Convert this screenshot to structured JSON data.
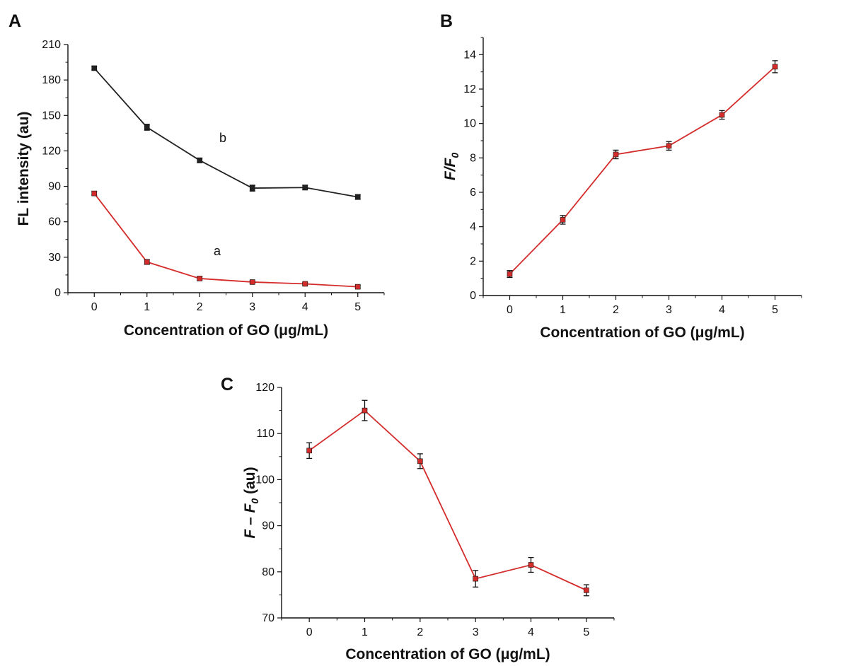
{
  "chart_data": [
    {
      "panel": "A",
      "type": "line",
      "x": [
        0,
        1,
        2,
        3,
        4,
        5
      ],
      "xlim": [
        -0.5,
        5.5
      ],
      "ylim": [
        0,
        210
      ],
      "xticks": [
        "0",
        "1",
        "2",
        "3",
        "4",
        "5"
      ],
      "yticks": [
        "0",
        "30",
        "60",
        "90",
        "120",
        "150",
        "180",
        "210"
      ],
      "xlabel": "Concentration of GO (μg/mL)",
      "ylabel": "FL intensity (au)",
      "grid": false,
      "series": [
        {
          "name": "b",
          "color": "#222222",
          "values": [
            190,
            140,
            112,
            88.5,
            89,
            81
          ],
          "errors": [
            1.5,
            2.5,
            2,
            2.5,
            2,
            2
          ]
        },
        {
          "name": "a",
          "color": "#d42b2b",
          "values": [
            84,
            26,
            12,
            9,
            7.5,
            5
          ],
          "errors": [
            1.5,
            2,
            1.5,
            1,
            1,
            1
          ]
        }
      ]
    },
    {
      "panel": "B",
      "type": "line",
      "x": [
        0,
        1,
        2,
        3,
        4,
        5
      ],
      "xlim": [
        -0.5,
        5.5
      ],
      "ylim": [
        0,
        15
      ],
      "xticks": [
        "0",
        "1",
        "2",
        "3",
        "4",
        "5"
      ],
      "yticks": [
        "0",
        "2",
        "4",
        "6",
        "8",
        "10",
        "12",
        "14"
      ],
      "xlabel": "Concentration of GO (μg/mL)",
      "ylabel": "F/F0",
      "ylabel_main": "F/F",
      "ylabel_sub": "0",
      "grid": false,
      "series": [
        {
          "color": "#d42b2b",
          "values": [
            1.25,
            4.4,
            8.2,
            8.7,
            10.5,
            13.3
          ],
          "errors": [
            0.2,
            0.25,
            0.25,
            0.25,
            0.25,
            0.35
          ]
        }
      ]
    },
    {
      "panel": "C",
      "type": "line",
      "x": [
        0,
        1,
        2,
        3,
        4,
        5
      ],
      "xlim": [
        -0.5,
        5.5
      ],
      "ylim": [
        70,
        120
      ],
      "xticks": [
        "0",
        "1",
        "2",
        "3",
        "4",
        "5"
      ],
      "yticks": [
        "70",
        "80",
        "90",
        "100",
        "110",
        "120"
      ],
      "xlabel": "Concentration of GO (μg/mL)",
      "ylabel": "F – F0 (au)",
      "ylabel_main": "F – F",
      "ylabel_sub": "0",
      "ylabel_suffix": " (au)",
      "grid": false,
      "series": [
        {
          "color": "#d42b2b",
          "values": [
            106.3,
            115,
            104,
            78.5,
            81.5,
            76
          ],
          "errors": [
            1.7,
            2.2,
            1.6,
            1.8,
            1.6,
            1.2
          ]
        }
      ]
    }
  ]
}
